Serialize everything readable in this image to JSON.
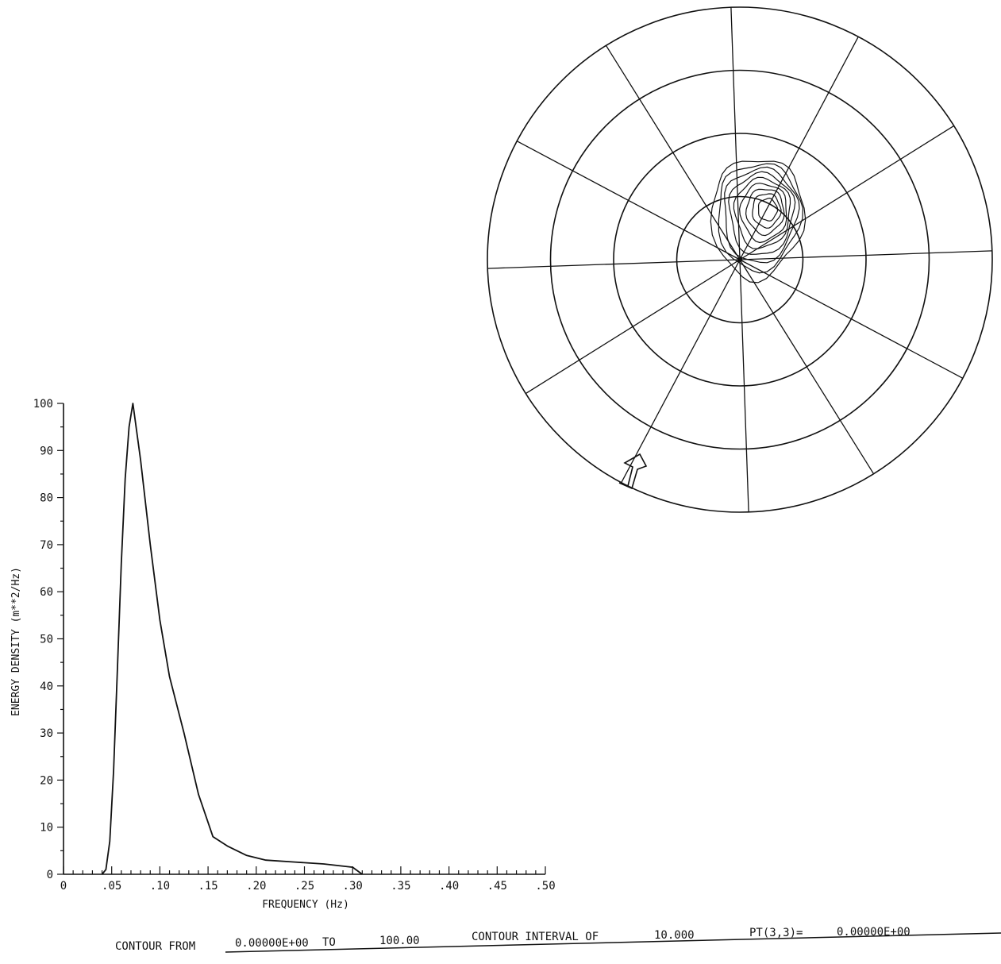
{
  "chart_data": [
    {
      "type": "line",
      "xlabel": "FREQUENCY (Hz)",
      "ylabel": "ENERGY DENSITY (m**2/Hz)",
      "xlim": [
        0,
        0.5
      ],
      "ylim": [
        0,
        100
      ],
      "x_tick_labels": [
        "0",
        ".05",
        ".10",
        ".15",
        ".20",
        ".25",
        ".30",
        ".35",
        ".40",
        ".45",
        ".50"
      ],
      "x_tick_values": [
        0,
        0.05,
        0.1,
        0.15,
        0.2,
        0.25,
        0.3,
        0.35,
        0.4,
        0.45,
        0.5
      ],
      "y_tick_labels": [
        "0",
        "10",
        "20",
        "30",
        "40",
        "50",
        "60",
        "70",
        "80",
        "90",
        "100"
      ],
      "y_tick_values": [
        0,
        10,
        20,
        30,
        40,
        50,
        60,
        70,
        80,
        90,
        100
      ],
      "grid": false,
      "series": [
        {
          "x": [
            0.04,
            0.044,
            0.048,
            0.052,
            0.056,
            0.06,
            0.064,
            0.068,
            0.072,
            0.08,
            0.09,
            0.1,
            0.11,
            0.125,
            0.14,
            0.155,
            0.17,
            0.19,
            0.21,
            0.24,
            0.27,
            0.3,
            0.31
          ],
          "y": [
            0,
            1,
            7,
            22,
            44,
            66,
            84,
            95,
            100,
            88,
            70,
            54,
            42,
            30,
            17,
            8,
            6,
            4,
            3,
            2.6,
            2.2,
            1.5,
            0
          ]
        }
      ]
    },
    {
      "type": "contour",
      "subtype": "polar directional spectrum",
      "rings": 4,
      "spokes": 12,
      "contour_levels": [
        10,
        20,
        30,
        40,
        50,
        60,
        70,
        80,
        90
      ],
      "peak_direction_deg": 30,
      "arrow": "hollow arrow near outer ring at lower-left, pointing toward center"
    }
  ],
  "footer": {
    "contour_from_label": "CONTOUR FROM",
    "contour_from_value": "0.00000E+00",
    "to_label": "TO",
    "to_value": "100.00",
    "interval_label": "CONTOUR INTERVAL OF",
    "interval_value": "10.000",
    "pt_label": "PT(3,3)=",
    "pt_value": "0.00000E+00"
  }
}
